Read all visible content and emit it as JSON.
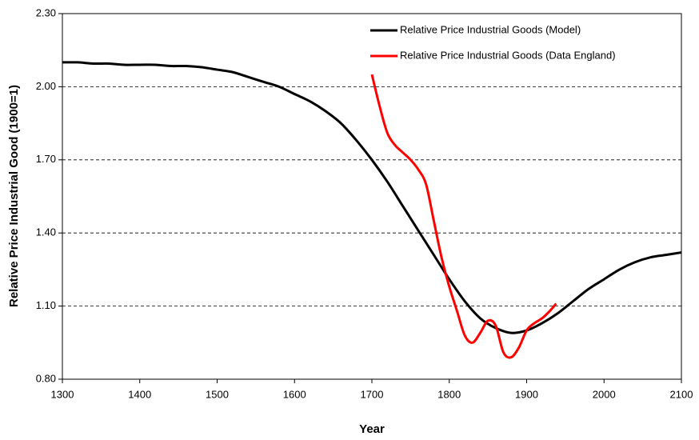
{
  "chart_data": {
    "type": "line",
    "xlabel": "Year",
    "ylabel": "Relative Price Industrial Good (1900=1)",
    "xlim": [
      1300,
      2100
    ],
    "xticks": [
      1300,
      1400,
      1500,
      1600,
      1700,
      1800,
      1900,
      2000,
      2100
    ],
    "ylim": [
      0.8,
      2.3
    ],
    "yticks": [
      {
        "value": 0.8,
        "label": "0.80"
      },
      {
        "value": 1.1,
        "label": "1.10"
      },
      {
        "value": 1.4,
        "label": "1.40"
      },
      {
        "value": 1.7,
        "label": "1.70"
      },
      {
        "value": 2.0,
        "label": "2.00"
      },
      {
        "value": 2.3,
        "label": "2.30"
      }
    ],
    "grid": true,
    "legend": "upper right",
    "series": [
      {
        "name": "Relative Price Industrial Goods (Model)",
        "color": "#000000",
        "x": [
          1300,
          1320,
          1340,
          1360,
          1380,
          1400,
          1420,
          1440,
          1460,
          1480,
          1500,
          1520,
          1540,
          1560,
          1580,
          1600,
          1620,
          1640,
          1660,
          1680,
          1700,
          1720,
          1740,
          1760,
          1780,
          1800,
          1820,
          1840,
          1860,
          1880,
          1900,
          1920,
          1940,
          1960,
          1980,
          2000,
          2020,
          2040,
          2060,
          2080,
          2100
        ],
        "values": [
          2.1,
          2.1,
          2.095,
          2.095,
          2.09,
          2.09,
          2.09,
          2.085,
          2.085,
          2.08,
          2.07,
          2.06,
          2.04,
          2.02,
          2.0,
          1.97,
          1.94,
          1.9,
          1.85,
          1.78,
          1.7,
          1.61,
          1.51,
          1.41,
          1.31,
          1.21,
          1.12,
          1.05,
          1.01,
          0.99,
          1.0,
          1.03,
          1.07,
          1.12,
          1.17,
          1.21,
          1.25,
          1.28,
          1.3,
          1.31,
          1.32
        ]
      },
      {
        "name": "Relative Price Industrial Goods (Data England)",
        "color": "#ff0000",
        "x": [
          1700,
          1710,
          1720,
          1730,
          1740,
          1750,
          1760,
          1770,
          1780,
          1790,
          1800,
          1810,
          1820,
          1830,
          1840,
          1850,
          1860,
          1870,
          1880,
          1890,
          1900,
          1910,
          1920,
          1930,
          1938
        ],
        "values": [
          2.05,
          1.92,
          1.81,
          1.76,
          1.73,
          1.7,
          1.66,
          1.6,
          1.45,
          1.3,
          1.18,
          1.08,
          0.98,
          0.95,
          0.99,
          1.04,
          1.02,
          0.91,
          0.89,
          0.93,
          1.0,
          1.03,
          1.05,
          1.08,
          1.11
        ]
      }
    ]
  }
}
